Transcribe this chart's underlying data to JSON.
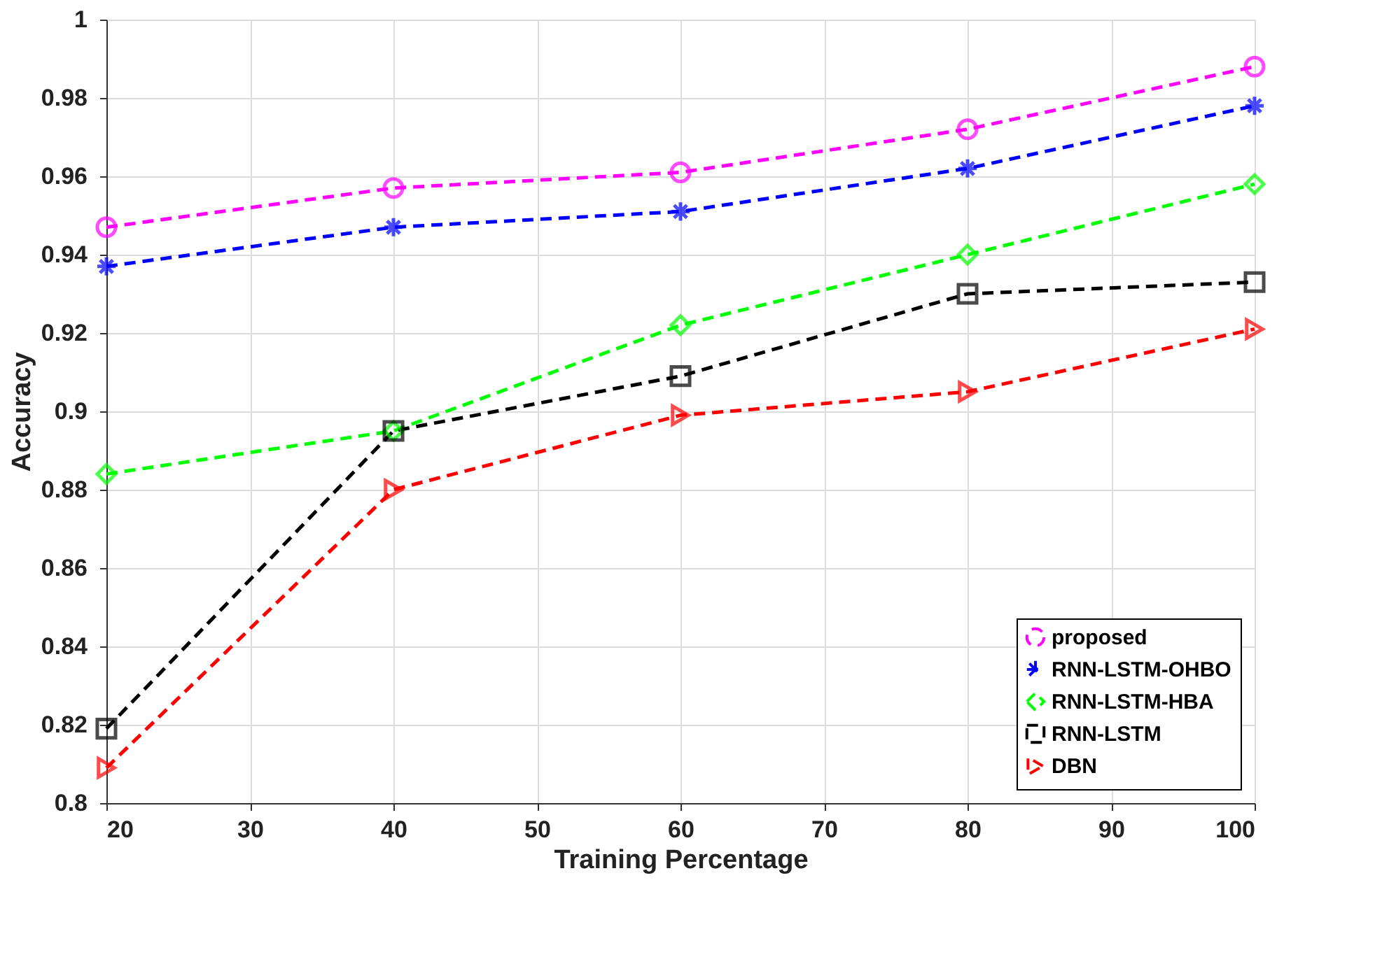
{
  "chart_data": {
    "type": "line",
    "xlabel": "Training Percentage",
    "ylabel": "Accuracy",
    "x": [
      20,
      40,
      60,
      80,
      100
    ],
    "xlim": [
      20,
      100
    ],
    "xticks": [
      20,
      30,
      40,
      50,
      60,
      70,
      80,
      90,
      100
    ],
    "ylim": [
      0.8,
      1
    ],
    "yticks": [
      0.8,
      0.82,
      0.84,
      0.86,
      0.88,
      0.9,
      0.92,
      0.94,
      0.96,
      0.98,
      1
    ],
    "grid": true,
    "legend": "bottom right",
    "line_style": "dashed",
    "series": [
      {
        "name": "proposed",
        "color": "#ff00ff",
        "marker": "circle",
        "values": [
          0.947,
          0.957,
          0.961,
          0.972,
          0.988
        ]
      },
      {
        "name": "RNN-LSTM-OHBO",
        "color": "#0000ff",
        "marker": "cross",
        "values": [
          0.937,
          0.947,
          0.951,
          0.962,
          0.978
        ]
      },
      {
        "name": "RNN-LSTM-HBA",
        "color": "#00ff00",
        "marker": "diamond",
        "values": [
          0.884,
          0.895,
          0.922,
          0.94,
          0.958
        ]
      },
      {
        "name": "RNN-LSTM",
        "color": "#000000",
        "marker": "square",
        "values": [
          0.819,
          0.895,
          0.909,
          0.93,
          0.933
        ]
      },
      {
        "name": "DBN",
        "color": "#ff0000",
        "marker": "triangle",
        "values": [
          0.809,
          0.88,
          0.899,
          0.905,
          0.921
        ]
      }
    ]
  }
}
